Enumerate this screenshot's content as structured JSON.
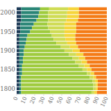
{
  "chart_data": {
    "type": "bar",
    "orientation": "horizontal",
    "stacked": true,
    "categories": [
      null,
      1800,
      null,
      null,
      null,
      null,
      1850,
      null,
      null,
      null,
      null,
      1900,
      null,
      null,
      null,
      null,
      1950,
      null,
      null,
      null,
      null,
      2000,
      null
    ],
    "xlim": [
      0,
      100
    ],
    "xticks": [
      0,
      10,
      20,
      30,
      40,
      50,
      60,
      70,
      80,
      90,
      100
    ],
    "grid": false,
    "series": [
      {
        "color": "#1d3a57",
        "values": [
          3,
          3,
          3,
          3,
          3,
          3,
          3,
          3,
          3,
          3,
          3,
          3,
          3,
          3,
          3,
          3,
          4,
          4,
          4,
          5,
          5,
          5,
          5
        ]
      },
      {
        "color": "#2a8676",
        "values": [
          2,
          2,
          2,
          2,
          2,
          3,
          3,
          3,
          4,
          4,
          5,
          5,
          6,
          7,
          8,
          9,
          11,
          13,
          15,
          17,
          19,
          20,
          21
        ]
      },
      {
        "color": "#9fcb3e",
        "values": [
          78,
          80,
          80,
          79,
          76,
          72,
          67,
          63,
          58,
          55,
          50,
          45,
          40,
          34,
          30,
          27,
          22,
          18,
          15,
          13,
          11,
          10,
          10
        ]
      },
      {
        "color": "#cfdc55",
        "values": [
          3,
          3,
          3,
          3,
          4,
          4,
          5,
          6,
          7,
          7,
          8,
          9,
          10,
          12,
          13,
          14,
          16,
          18,
          19,
          20,
          21,
          21,
          21
        ]
      },
      {
        "color": "#f6d53c",
        "values": [
          3,
          2,
          2,
          3,
          3,
          4,
          5,
          6,
          6,
          7,
          8,
          8,
          9,
          10,
          11,
          12,
          13,
          13,
          13,
          13,
          13,
          13,
          12
        ]
      },
      {
        "color": "#f47b16",
        "values": [
          11,
          10,
          10,
          10,
          12,
          14,
          17,
          19,
          22,
          24,
          26,
          30,
          32,
          34,
          35,
          35,
          34,
          34,
          34,
          32,
          31,
          31,
          31
        ]
      }
    ]
  }
}
